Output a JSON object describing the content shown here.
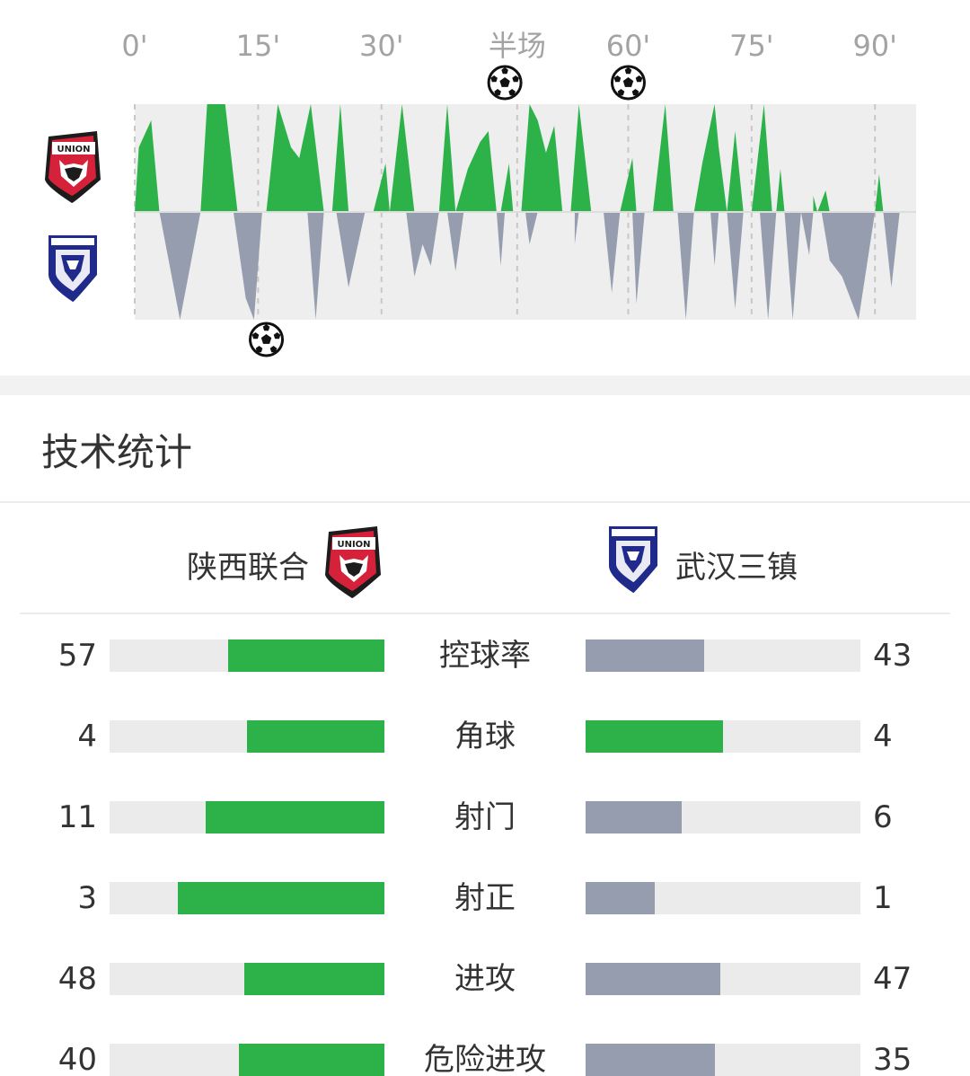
{
  "timeline": {
    "minute_labels": [
      "0'",
      "15'",
      "30'",
      "半场",
      "60'",
      "75'",
      "90'"
    ],
    "colors": {
      "home": "#2db24a",
      "away": "#959dae",
      "background": "#eeeeee"
    },
    "home_goal_minutes": [
      45,
      60
    ],
    "away_goal_minutes": [
      16
    ],
    "goal_icon": "soccer-ball-icon",
    "home_crest_icon": "shaanxi-union-crest-icon",
    "away_crest_icon": "wuhan-three-towns-crest-icon",
    "home_pressure": [
      [
        0,
        0.0
      ],
      [
        0.5,
        0.6
      ],
      [
        2,
        0.85
      ],
      [
        3,
        0
      ],
      [
        8,
        0
      ],
      [
        8.8,
        1.0
      ],
      [
        11,
        1.0
      ],
      [
        12.5,
        0
      ],
      [
        16,
        0
      ],
      [
        17.4,
        1.0
      ],
      [
        19,
        0.6
      ],
      [
        20,
        0.5
      ],
      [
        21.4,
        1.0
      ],
      [
        23,
        0
      ],
      [
        24,
        0
      ],
      [
        25,
        1.0
      ],
      [
        26,
        0
      ],
      [
        29,
        0
      ],
      [
        30.5,
        0.45
      ],
      [
        31,
        0
      ],
      [
        32.5,
        1.0
      ],
      [
        34,
        0
      ],
      [
        37,
        0
      ],
      [
        38,
        1.0
      ],
      [
        39,
        0
      ],
      [
        40.5,
        0.4
      ],
      [
        42,
        0.65
      ],
      [
        43,
        0.75
      ],
      [
        44,
        0
      ],
      [
        44.5,
        0
      ],
      [
        45.5,
        0.45
      ],
      [
        46,
        0
      ],
      [
        47,
        0
      ],
      [
        48,
        1.0
      ],
      [
        49,
        0.85
      ],
      [
        50,
        0.55
      ],
      [
        51,
        0.8
      ],
      [
        52,
        0
      ],
      [
        53,
        0
      ],
      [
        54,
        1.0
      ],
      [
        55.5,
        0
      ],
      [
        59,
        0
      ],
      [
        60.5,
        0.5
      ],
      [
        61,
        0
      ],
      [
        63,
        0
      ],
      [
        64.5,
        1.0
      ],
      [
        65.5,
        0
      ],
      [
        68,
        0
      ],
      [
        69,
        0.45
      ],
      [
        70.5,
        1.0
      ],
      [
        71,
        0.6
      ],
      [
        72,
        0
      ],
      [
        73,
        0.75
      ],
      [
        74,
        0
      ],
      [
        75,
        0
      ],
      [
        76.5,
        1.0
      ],
      [
        77.5,
        0
      ],
      [
        78,
        0
      ],
      [
        78.5,
        0.4
      ],
      [
        79,
        0
      ],
      [
        82.5,
        0
      ],
      [
        82.5,
        0.15
      ],
      [
        83,
        0
      ],
      [
        84,
        0.2
      ],
      [
        84.5,
        0
      ],
      [
        90,
        0
      ],
      [
        90.5,
        0.35
      ],
      [
        91,
        0
      ],
      [
        95,
        0
      ],
      [
        95,
        0.3
      ]
    ],
    "away_pressure": [
      [
        0,
        0
      ],
      [
        3,
        0
      ],
      [
        5.5,
        1.0
      ],
      [
        8,
        0
      ],
      [
        12,
        0
      ],
      [
        13.5,
        0.8
      ],
      [
        14.5,
        1.0
      ],
      [
        15.5,
        0
      ],
      [
        21,
        0
      ],
      [
        22,
        1.0
      ],
      [
        23,
        0
      ],
      [
        24.5,
        0
      ],
      [
        26,
        0.7
      ],
      [
        28,
        0
      ],
      [
        33,
        0
      ],
      [
        34,
        0.6
      ],
      [
        35,
        0.3
      ],
      [
        36,
        0.5
      ],
      [
        37,
        0
      ],
      [
        38,
        0
      ],
      [
        39,
        0.55
      ],
      [
        40,
        0
      ],
      [
        44,
        0
      ],
      [
        44.5,
        0.5
      ],
      [
        45,
        0
      ],
      [
        47.5,
        0
      ],
      [
        48,
        0.3
      ],
      [
        49,
        0
      ],
      [
        53.5,
        0
      ],
      [
        53.5,
        0.3
      ],
      [
        54,
        0
      ],
      [
        57,
        0
      ],
      [
        58,
        0.75
      ],
      [
        59,
        0
      ],
      [
        60.5,
        0
      ],
      [
        61,
        0.85
      ],
      [
        62,
        0
      ],
      [
        66,
        0
      ],
      [
        67,
        1.0
      ],
      [
        68,
        0
      ],
      [
        70,
        0
      ],
      [
        70.5,
        0.5
      ],
      [
        71,
        0
      ],
      [
        72,
        0
      ],
      [
        73,
        0.9
      ],
      [
        74,
        0
      ],
      [
        76,
        0
      ],
      [
        77,
        1.0
      ],
      [
        78,
        0
      ],
      [
        79,
        0
      ],
      [
        80,
        1.0
      ],
      [
        81,
        0
      ],
      [
        82,
        0.4
      ],
      [
        82.5,
        0
      ],
      [
        83.5,
        0
      ],
      [
        84.5,
        0.45
      ],
      [
        86,
        0.6
      ],
      [
        88,
        1.0
      ],
      [
        90,
        0
      ],
      [
        91,
        0
      ],
      [
        92,
        0.7
      ],
      [
        93,
        0
      ]
    ]
  },
  "stats": {
    "title": "技术统计",
    "home_team": "陕西联合",
    "away_team": "武汉三镇",
    "colors": {
      "leader": "#2db24a",
      "trailer": "#959dae",
      "track": "#ebebeb"
    },
    "rows": [
      {
        "label": "控球率",
        "home": "57",
        "away": "43",
        "home_fraction": 0.57,
        "away_fraction": 0.43,
        "home_color": "#2db24a",
        "away_color": "#959dae"
      },
      {
        "label": "角球",
        "home": "4",
        "away": "4",
        "home_fraction": 0.5,
        "away_fraction": 0.5,
        "home_color": "#2db24a",
        "away_color": "#2db24a"
      },
      {
        "label": "射门",
        "home": "11",
        "away": "6",
        "home_fraction": 0.65,
        "away_fraction": 0.35,
        "home_color": "#2db24a",
        "away_color": "#959dae"
      },
      {
        "label": "射正",
        "home": "3",
        "away": "1",
        "home_fraction": 0.75,
        "away_fraction": 0.25,
        "home_color": "#2db24a",
        "away_color": "#959dae"
      },
      {
        "label": "进攻",
        "home": "48",
        "away": "47",
        "home_fraction": 0.51,
        "away_fraction": 0.49,
        "home_color": "#2db24a",
        "away_color": "#959dae"
      },
      {
        "label": "危险进攻",
        "home": "40",
        "away": "35",
        "home_fraction": 0.53,
        "away_fraction": 0.47,
        "home_color": "#2db24a",
        "away_color": "#959dae"
      }
    ]
  }
}
